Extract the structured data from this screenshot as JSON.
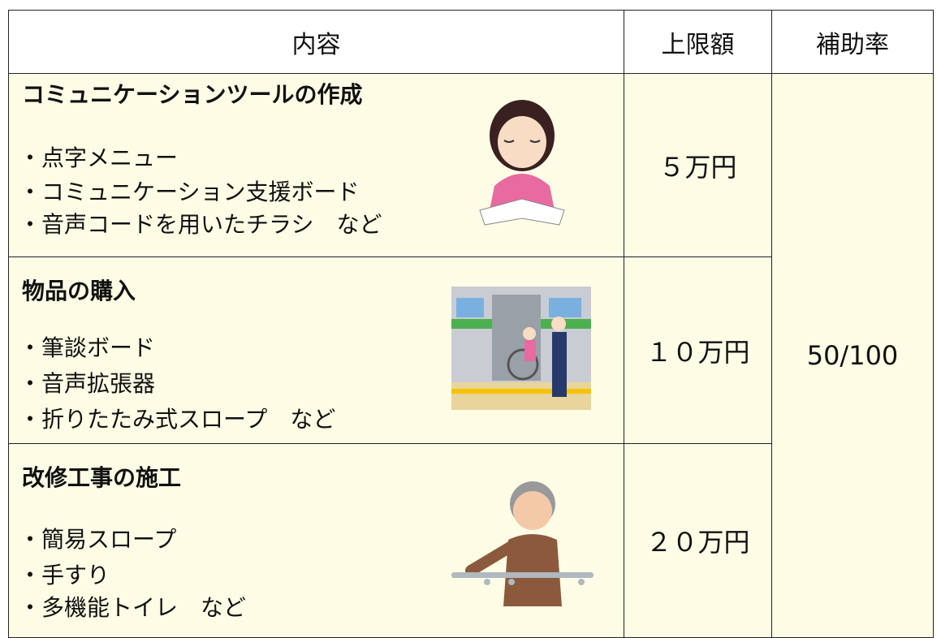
{
  "table": {
    "header": [
      "内容",
      "上限額",
      "補助率"
    ],
    "rows": [
      {
        "title": "コミュニケーションツールの作成",
        "items": [
          "・点字メニュー",
          "・コミュニケーション支援ボード",
          "・音声コードを用いたチラシ　など"
        ],
        "limit": "５万円"
      },
      {
        "title": "物品の購入",
        "items": [
          "・筆談ボード",
          "・音声拡張器",
          "・折りたたみ式スロープ　など"
        ],
        "limit": "１０万円"
      },
      {
        "title": "改修工事の施工",
        "items": [
          "・簡易スロープ",
          "・手すり",
          "・多機能トイレ　など"
        ],
        "limit": "２０万円"
      }
    ],
    "rate": "50/100"
  }
}
